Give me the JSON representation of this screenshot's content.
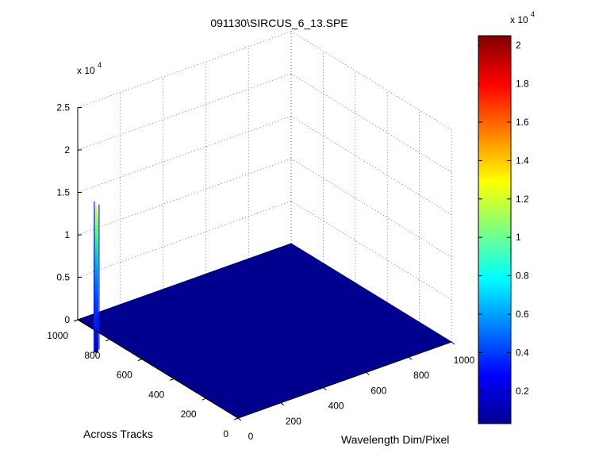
{
  "figure": {
    "title": "091130\\SIRCUS_6_13.SPE"
  },
  "chart_data": {
    "type": "surface",
    "title": "091130\\SIRCUS_6_13.SPE",
    "xlabel": "Wavelength Dim/Pixel",
    "ylabel": "Across Tracks",
    "zlabel": "",
    "x_ticks": [
      "0",
      "200",
      "400",
      "600",
      "800",
      "1000"
    ],
    "y_ticks": [
      "0",
      "200",
      "400",
      "600",
      "800",
      "1000"
    ],
    "z_ticks": [
      "0",
      "0.5",
      "1",
      "1.5",
      "2",
      "2.5"
    ],
    "z_exponent": "x 10",
    "z_exponent_power": "4",
    "xlim": [
      0,
      1000
    ],
    "ylim": [
      0,
      1000
    ],
    "zlim": [
      0,
      25000
    ],
    "grid": true,
    "colormap": "jet",
    "baseline_value": 0,
    "peak": {
      "x": 10,
      "y": 900,
      "z": 15000
    },
    "colorbar": {
      "ticks": [
        "0.2",
        "0.4",
        "0.6",
        "0.8",
        "1",
        "1.2",
        "1.4",
        "1.6",
        "1.8",
        "2"
      ],
      "exponent": "x 10",
      "exponent_power": "4",
      "range": [
        300,
        20500
      ]
    }
  },
  "colors": {
    "surface": "#00008f",
    "surface_edge": "#00007a",
    "grid": "#555555",
    "axis": "#000000",
    "background": "#ffffff"
  }
}
